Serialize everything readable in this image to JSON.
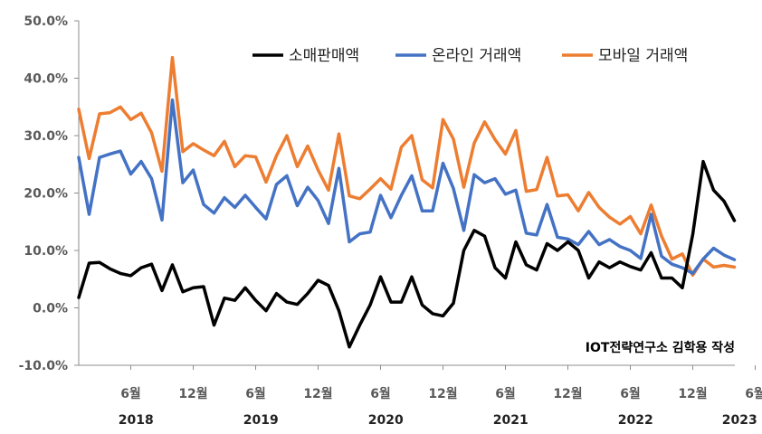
{
  "chart_data": {
    "type": "line",
    "title": "",
    "xlabel": "",
    "ylabel": "",
    "ylim": [
      -10,
      50
    ],
    "yticks": [
      "50.0%",
      "40.0%",
      "30.0%",
      "20.0%",
      "10.0%",
      "0.0%",
      "-10.0%"
    ],
    "month_ticks": [
      {
        "i": 5,
        "label": "6월"
      },
      {
        "i": 11,
        "label": "12월"
      },
      {
        "i": 17,
        "label": "6월"
      },
      {
        "i": 23,
        "label": "12월"
      },
      {
        "i": 29,
        "label": "6월"
      },
      {
        "i": 35,
        "label": "12월"
      },
      {
        "i": 41,
        "label": "6월"
      },
      {
        "i": 47,
        "label": "12월"
      },
      {
        "i": 53,
        "label": "6월"
      },
      {
        "i": 59,
        "label": "12월"
      },
      {
        "i": 65,
        "label": "6월"
      }
    ],
    "years": [
      {
        "label": "2018",
        "center": 5.5
      },
      {
        "label": "2019",
        "center": 17.5
      },
      {
        "label": "2020",
        "center": 29.5
      },
      {
        "label": "2021",
        "center": 41.5
      },
      {
        "label": "2022",
        "center": 53.5
      },
      {
        "label": "2023",
        "center": 63.5
      }
    ],
    "x_count": 64,
    "legend_position": "top-right",
    "grid": false,
    "series": [
      {
        "name": "소매판매액",
        "color": "#000000",
        "values": [
          1.8,
          7.8,
          7.9,
          6.8,
          6.0,
          5.6,
          7.0,
          7.6,
          3.0,
          7.5,
          2.8,
          3.5,
          3.7,
          -3.0,
          1.7,
          1.3,
          3.5,
          1.3,
          -0.5,
          2.5,
          1.0,
          0.6,
          2.5,
          4.8,
          3.9,
          -0.5,
          -6.8,
          -3.0,
          0.5,
          5.4,
          1.0,
          1.0,
          5.4,
          0.5,
          -1.0,
          -1.4,
          0.8,
          10.0,
          13.5,
          12.5,
          7.0,
          5.2,
          11.5,
          7.5,
          6.6,
          11.2,
          10.0,
          11.5,
          10.0,
          5.2,
          8.0,
          7.0,
          8.0,
          7.2,
          6.6,
          9.6,
          5.2,
          5.2,
          3.5,
          12.8,
          25.5,
          20.5,
          18.6,
          15.2
        ]
      },
      {
        "name": "온라인 거래액",
        "color": "#4472C4",
        "values": [
          26.2,
          16.3,
          26.2,
          26.8,
          27.3,
          23.3,
          25.5,
          22.5,
          15.3,
          36.2,
          21.8,
          24.0,
          18.0,
          16.5,
          19.2,
          17.5,
          19.6,
          17.5,
          15.5,
          21.5,
          23.0,
          17.8,
          21.0,
          18.7,
          14.7,
          24.3,
          11.5,
          12.9,
          13.2,
          19.6,
          15.7,
          19.6,
          23.0,
          16.9,
          16.9,
          25.2,
          20.8,
          13.5,
          23.2,
          21.8,
          22.5,
          19.8,
          20.5,
          13.0,
          12.7,
          18.0,
          12.3,
          12.0,
          11.0,
          13.3,
          11.0,
          11.9,
          10.7,
          10.0,
          8.6,
          16.3,
          9.0,
          7.6,
          7.0,
          6.0,
          8.5,
          10.4,
          9.2,
          8.4
        ]
      },
      {
        "name": "모바일 거래액",
        "color": "#ED7D31",
        "values": [
          34.6,
          26.0,
          33.8,
          34.0,
          35.0,
          32.8,
          33.9,
          30.5,
          23.8,
          43.6,
          27.2,
          28.6,
          27.5,
          26.5,
          29.0,
          24.6,
          26.5,
          26.3,
          21.9,
          26.5,
          30.0,
          24.6,
          28.2,
          24.0,
          20.5,
          30.3,
          19.5,
          19.0,
          20.7,
          22.5,
          20.7,
          28.0,
          30.0,
          22.3,
          20.9,
          32.8,
          29.4,
          21.0,
          28.7,
          32.4,
          29.3,
          26.8,
          30.9,
          20.3,
          20.6,
          26.2,
          19.5,
          19.7,
          16.9,
          20.1,
          17.5,
          15.8,
          14.6,
          15.9,
          12.9,
          17.9,
          12.5,
          8.5,
          9.4,
          5.7,
          8.5,
          7.1,
          7.4,
          7.1
        ]
      }
    ]
  },
  "credit": "IOT전략연구소 김학용 작성"
}
